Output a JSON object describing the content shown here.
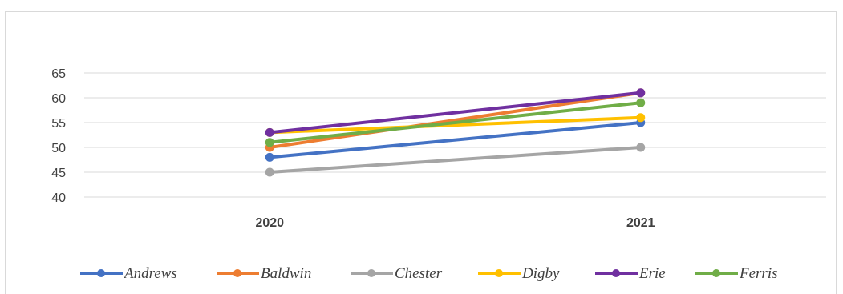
{
  "chart_data": {
    "type": "line",
    "categories": [
      "2020",
      "2021"
    ],
    "yticks": [
      40,
      45,
      50,
      55,
      60,
      65
    ],
    "ylim": [
      40,
      65
    ],
    "grid": true,
    "legend_position": "bottom",
    "series": [
      {
        "name": "Andrews",
        "values": [
          48,
          55
        ],
        "color": "#4472C4"
      },
      {
        "name": "Baldwin",
        "values": [
          50,
          61
        ],
        "color": "#ED7D31"
      },
      {
        "name": "Chester",
        "values": [
          45,
          50
        ],
        "color": "#A5A5A5"
      },
      {
        "name": "Digby",
        "values": [
          53,
          56
        ],
        "color": "#FFC000"
      },
      {
        "name": "Erie",
        "values": [
          53,
          61
        ],
        "color": "#7030A0"
      },
      {
        "name": "Ferris",
        "values": [
          51,
          59
        ],
        "color": "#70AD47"
      }
    ]
  }
}
